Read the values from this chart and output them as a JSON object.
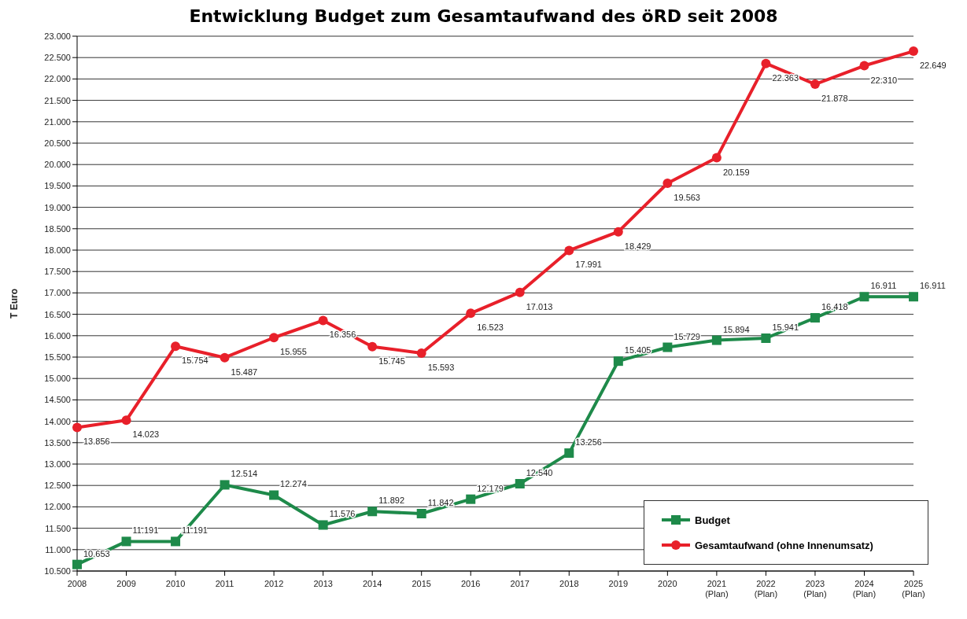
{
  "chart_data": {
    "type": "line",
    "title": "Entwicklung Budget zum Gesamtaufwand des öRD seit 2008",
    "ylabel": "T Euro",
    "categories": [
      "2008",
      "2009",
      "2010",
      "2011",
      "2012",
      "2013",
      "2014",
      "2015",
      "2016",
      "2017",
      "2018",
      "2019",
      "2020",
      "2021\n(Plan)",
      "2022\n(Plan)",
      "2023\n(Plan)",
      "2024\n(Plan)",
      "2025\n(Plan)"
    ],
    "series": [
      {
        "name": "Budget",
        "color": "#1e8a4a",
        "marker": "square",
        "values": [
          10653,
          11191,
          11191,
          12514,
          12274,
          11576,
          11892,
          11842,
          12179,
          12540,
          13256,
          15405,
          15729,
          15894,
          15941,
          16418,
          16911,
          16911
        ],
        "value_labels": [
          "10.653",
          "11.191",
          "11.191",
          "12.514",
          "12.274",
          "11.576",
          "11.892",
          "11.842",
          "12.179",
          "12.540",
          "13.256",
          "15.405",
          "15.729",
          "15.894",
          "15.941",
          "16.418",
          "16.911",
          "16.911"
        ]
      },
      {
        "name": "Gesamtaufwand (ohne Innenumsatz)",
        "color": "#e8202a",
        "marker": "circle",
        "values": [
          13856,
          14023,
          15754,
          15487,
          15955,
          16356,
          15745,
          15593,
          16523,
          17013,
          17991,
          18429,
          19563,
          20159,
          22363,
          21878,
          22310,
          22649
        ],
        "value_labels": [
          "13.856",
          "14.023",
          "15.754",
          "15.487",
          "15.955",
          "16.356",
          "15.745",
          "15.593",
          "16.523",
          "17.013",
          "17.991",
          "18.429",
          "19.563",
          "20.159",
          "22.363",
          "21.878",
          "22.310",
          "22.649"
        ]
      }
    ],
    "ylim": [
      10500,
      23000
    ],
    "yticks": [
      {
        "value": 10500,
        "label": "10.500"
      },
      {
        "value": 11000,
        "label": "11.000"
      },
      {
        "value": 11500,
        "label": "11.500"
      },
      {
        "value": 12000,
        "label": "12.000"
      },
      {
        "value": 12500,
        "label": "12.500"
      },
      {
        "value": 13000,
        "label": "13.000"
      },
      {
        "value": 13500,
        "label": "13.500"
      },
      {
        "value": 14000,
        "label": "14.000"
      },
      {
        "value": 14500,
        "label": "14.500"
      },
      {
        "value": 15000,
        "label": "15.000"
      },
      {
        "value": 15500,
        "label": "15.500"
      },
      {
        "value": 16000,
        "label": "16.000"
      },
      {
        "value": 16500,
        "label": "16.500"
      },
      {
        "value": 17000,
        "label": "17.000"
      },
      {
        "value": 17500,
        "label": "17.500"
      },
      {
        "value": 18000,
        "label": "18.000"
      },
      {
        "value": 18500,
        "label": "18.500"
      },
      {
        "value": 19000,
        "label": "19.000"
      },
      {
        "value": 19500,
        "label": "19.500"
      },
      {
        "value": 20000,
        "label": "20.000"
      },
      {
        "value": 20500,
        "label": "20.500"
      },
      {
        "value": 21000,
        "label": "21.000"
      },
      {
        "value": 21500,
        "label": "21.500"
      },
      {
        "value": 22000,
        "label": "22.000"
      },
      {
        "value": 22500,
        "label": "22.500"
      },
      {
        "value": 23000,
        "label": "23.000"
      }
    ],
    "grid": "y",
    "legend": "bottom right",
    "line_style": "solid"
  }
}
